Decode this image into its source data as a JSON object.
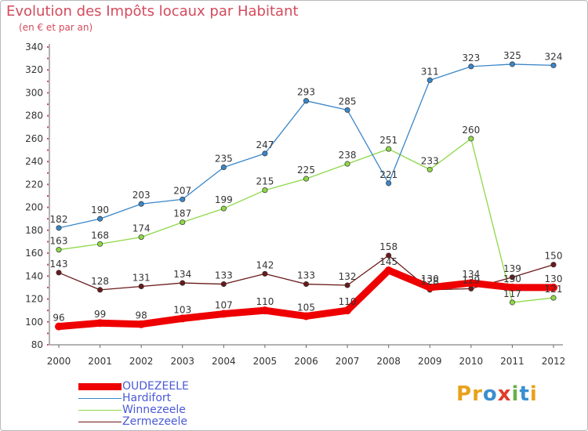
{
  "header": {
    "title": "Evolution des Impôts locaux par Habitant",
    "subtitle": "(en € et par an)"
  },
  "logo": {
    "text": "Proxiti",
    "letters": [
      {
        "char": "P",
        "color": "#e8a21b"
      },
      {
        "char": "r",
        "color": "#e8a21b"
      },
      {
        "char": "o",
        "color": "#3a8fd0"
      },
      {
        "char": "x",
        "color": "#e23b2b"
      },
      {
        "char": "i",
        "color": "#6ab04c"
      },
      {
        "char": "t",
        "color": "#3a8fd0"
      },
      {
        "char": "i",
        "color": "#e8a21b"
      }
    ]
  },
  "chart_data": {
    "type": "line",
    "x": [
      "2000",
      "2001",
      "2002",
      "2003",
      "2004",
      "2005",
      "2006",
      "2007",
      "2008",
      "2009",
      "2010",
      "2011",
      "2012"
    ],
    "ylim": [
      80,
      340
    ],
    "ytick_step": 20,
    "grid": false,
    "legend_position": "bottom-left",
    "series": [
      {
        "name": "OUDEZEELE",
        "color": "#ee0000",
        "values": [
          96,
          99,
          98,
          103,
          107,
          110,
          105,
          110,
          145,
          130,
          134,
          130,
          130
        ]
      },
      {
        "name": "Hardifort",
        "color": "#3a86c8",
        "values": [
          182,
          190,
          203,
          207,
          235,
          247,
          293,
          285,
          221,
          311,
          323,
          325,
          324
        ]
      },
      {
        "name": "Winnezeele",
        "color": "#8ed848",
        "values": [
          163,
          168,
          174,
          187,
          199,
          215,
          225,
          238,
          251,
          233,
          260,
          117,
          121
        ]
      },
      {
        "name": "Zermezeele",
        "color": "#6a1a1a",
        "values": [
          143,
          128,
          131,
          134,
          133,
          142,
          133,
          132,
          158,
          128,
          129,
          139,
          150
        ]
      }
    ]
  }
}
